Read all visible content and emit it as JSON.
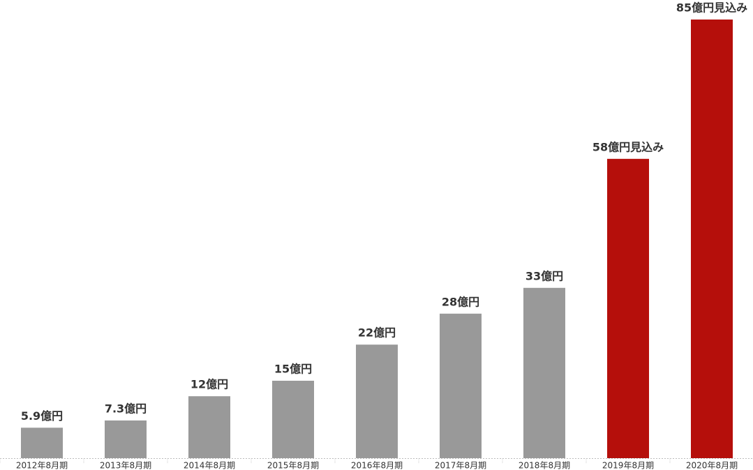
{
  "chart_data": {
    "type": "bar",
    "categories": [
      "2012年8月期",
      "2013年8月期",
      "2014年8月期",
      "2015年8月期",
      "2016年8月期",
      "2017年8月期",
      "2018年8月期",
      "2019年8月期",
      "2020年8月期"
    ],
    "values": [
      5.9,
      7.3,
      12,
      15,
      22,
      28,
      33,
      58,
      85
    ],
    "value_labels": [
      "5.9億円",
      "7.3億円",
      "12億円",
      "15億円",
      "22億円",
      "28億円",
      "33億円",
      "58億円見込み",
      "85億円見込み"
    ],
    "colors": [
      "#999999",
      "#999999",
      "#999999",
      "#999999",
      "#999999",
      "#999999",
      "#999999",
      "#b50f0b",
      "#b50f0b"
    ]
  }
}
